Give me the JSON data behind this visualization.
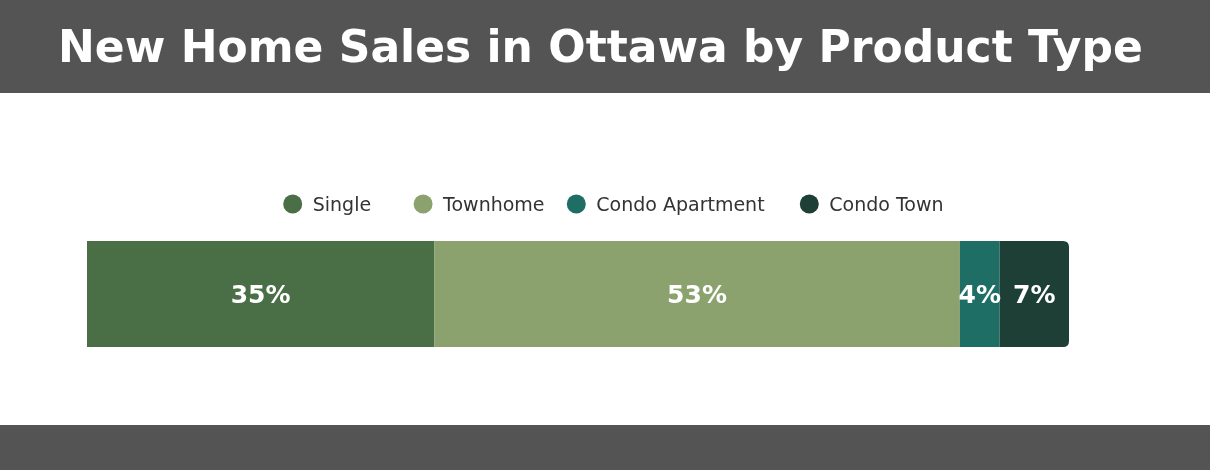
{
  "chart_data": {
    "type": "bar",
    "title": "New Home Sales in Ottawa by Product Type",
    "stacked": true,
    "orientation": "horizontal",
    "categories": [
      null
    ],
    "legend": "top",
    "series": [
      {
        "name": "Single",
        "color": "#4a6e45",
        "values": [
          35
        ],
        "value_labels": [
          "35%"
        ]
      },
      {
        "name": "Townhome",
        "color": "#8ba26e",
        "values": [
          53
        ],
        "value_labels": [
          "53%"
        ]
      },
      {
        "name": "Condo Apartment",
        "color": "#1f6e66",
        "values": [
          4
        ],
        "value_labels": [
          "4%"
        ]
      },
      {
        "name": "Condo Town",
        "color": "#1e3f35",
        "values": [
          7
        ],
        "value_labels": [
          "7%"
        ]
      }
    ]
  }
}
